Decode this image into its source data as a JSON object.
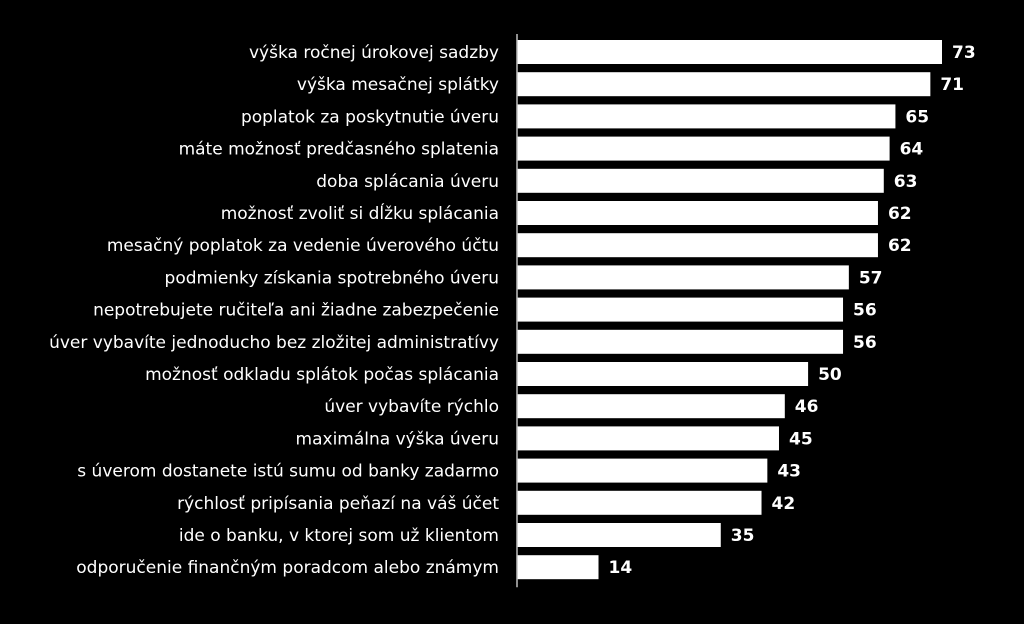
{
  "chart_data": {
    "type": "bar",
    "orientation": "horizontal",
    "categories": [
      "výška ročnej úrokovej sadzby",
      "výška mesačnej splátky",
      "poplatok za poskytnutie úveru",
      "máte možnosť predčasného splatenia",
      "doba splácania úveru",
      "možnosť zvoliť si dĺžku splácania",
      "mesačný poplatok za vedenie úverového účtu",
      "podmienky získania spotrebného úveru",
      "nepotrebujete ručiteľa ani žiadne zabezpečenie",
      "úver vybavíte jednoducho bez zložitej administratívy",
      "možnosť odkladu splátok počas splácania",
      "úver vybavíte rýchlo",
      "maximálna výška úveru",
      "s úverom dostanete istú sumu od banky zadarmo",
      "rýchlosť pripísania peňazí na váš účet",
      "ide o banku, v ktorej som už klientom",
      "odporučenie finančným poradcom alebo známym"
    ],
    "values": [
      73,
      71,
      65,
      64,
      63,
      62,
      62,
      57,
      56,
      56,
      50,
      46,
      45,
      43,
      42,
      35,
      14
    ],
    "data_labels": [
      "73",
      "71",
      "65",
      "64",
      "63",
      "62",
      "62",
      "57",
      "56",
      "56",
      "50",
      "46",
      "45",
      "43",
      "42",
      "35",
      "14"
    ],
    "xlim": [
      0,
      73
    ],
    "grid": false,
    "legend": "none",
    "colors": {
      "background": "#000000",
      "bar": "#ffffff",
      "text": "#ffffff",
      "axis": "#bfbfbf"
    }
  }
}
